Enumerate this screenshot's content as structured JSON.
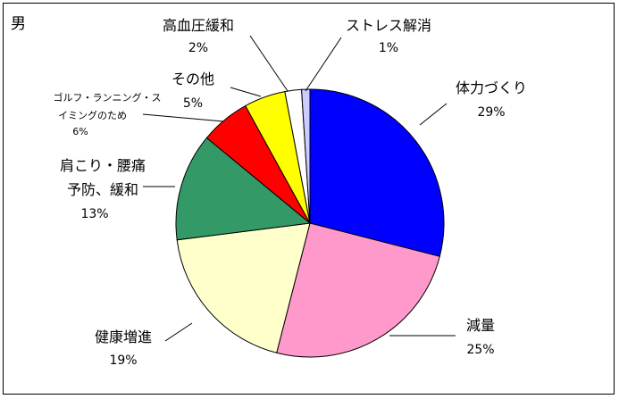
{
  "chart_data": {
    "type": "pie",
    "title": "男",
    "start_angle_deg": 0,
    "direction": "clockwise",
    "slices": [
      {
        "label": "体力づくり",
        "pct_label": "29%",
        "value": 29,
        "color": "#0000ff"
      },
      {
        "label": "減量",
        "pct_label": "25%",
        "value": 25,
        "color": "#ff99cc"
      },
      {
        "label": "健康増進",
        "pct_label": "19%",
        "value": 19,
        "color": "#ffffcc"
      },
      {
        "label": "肩こり・腰痛予防、緩和",
        "label_lines": [
          "肩こり・腰痛",
          "予防、緩和"
        ],
        "pct_label": "13%",
        "value": 13,
        "color": "#339966"
      },
      {
        "label": "ゴルフ・ランニング・スイミングのため",
        "label_lines": [
          "ゴルフ・ランニング・ス",
          "イミングのため"
        ],
        "pct_label": "6%",
        "value": 6,
        "color": "#ff0000"
      },
      {
        "label": "その他",
        "pct_label": "5%",
        "value": 5,
        "color": "#ffff00"
      },
      {
        "label": "高血圧緩和",
        "pct_label": "2%",
        "value": 2,
        "color": "#ffffff"
      },
      {
        "label": "ストレス解消",
        "pct_label": "1%",
        "value": 1,
        "color": "#ccccff"
      }
    ]
  }
}
